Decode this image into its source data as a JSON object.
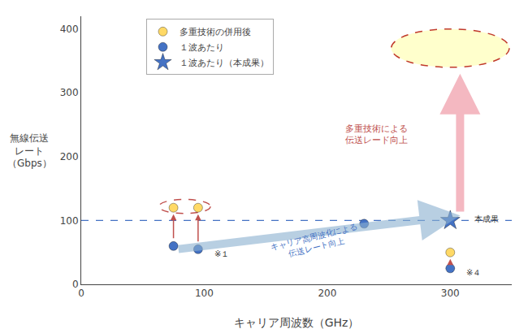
{
  "chart_data": {
    "type": "scatter",
    "xlabel": "キャリア周波数（GHz）",
    "ylabel": "無線伝送\nレート\n（Gbps）",
    "xlim": [
      0,
      350
    ],
    "ylim": [
      0,
      420
    ],
    "xticks": [
      0,
      100,
      200,
      300
    ],
    "yticks": [
      0,
      100,
      200,
      300,
      400
    ],
    "grid": false,
    "legend": "upper left",
    "reference_line": {
      "y": 100,
      "color": "#4472c4",
      "line_style": "dash"
    },
    "series": [
      {
        "name": "多重技術の併用後",
        "color": "#ffd966",
        "marker": "circle",
        "x": [
          75,
          95,
          300
        ],
        "values": [
          120,
          120,
          50
        ]
      },
      {
        "name": "１波あたり",
        "color": "#4472c4",
        "marker": "circle",
        "x": [
          75,
          95,
          230,
          300
        ],
        "values": [
          60,
          55,
          95,
          25
        ]
      },
      {
        "name": "１波あたり（本成果）",
        "color": "#4472c4",
        "marker": "star",
        "x": [
          300
        ],
        "values": [
          100
        ]
      }
    ],
    "annotations": [
      "キャリア高周波化による\n伝送レート向上",
      "多重技術による\n伝送レード向上",
      "本成果",
      "※１",
      "※４"
    ]
  }
}
